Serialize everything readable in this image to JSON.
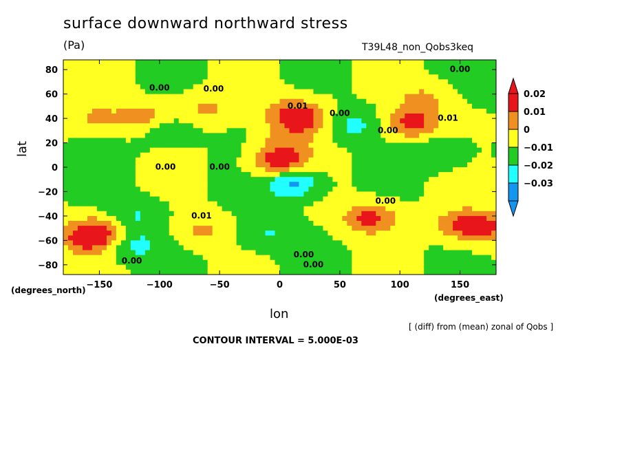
{
  "chart_data": {
    "type": "heatmap",
    "title": "surface downward northward stress",
    "units": "(Pa)",
    "run_label": "T39L48_non_Qobs3keq",
    "xlabel": "lon",
    "ylabel": "lat",
    "x_units": "(degrees_east)",
    "y_units": "(degrees_north)",
    "xlim": [
      -180,
      180
    ],
    "ylim": [
      -88,
      88
    ],
    "x_ticks": [
      -150,
      -100,
      -50,
      0,
      50,
      100,
      150
    ],
    "x_tick_labels": [
      "−150",
      "−100",
      "−50",
      "0",
      "50",
      "100",
      "150"
    ],
    "y_ticks": [
      80,
      60,
      40,
      20,
      0,
      -20,
      -40,
      -60,
      -80
    ],
    "y_tick_labels": [
      "80",
      "60",
      "40",
      "20",
      "0",
      "−20",
      "−40",
      "−60",
      "−80"
    ],
    "colorbar": {
      "labels": [
        "0.02",
        "0.01",
        "0",
        "−0.01",
        "−0.02",
        "−0.03"
      ],
      "bands": [
        {
          "range": [
            0.02,
            0.03
          ],
          "color": "#e8161a"
        },
        {
          "range": [
            0.01,
            0.02
          ],
          "color": "#f09020"
        },
        {
          "range": [
            0.0,
            0.01
          ],
          "color": "#ffff22"
        },
        {
          "range": [
            -0.01,
            0.0
          ],
          "color": "#22cc22"
        },
        {
          "range": [
            -0.02,
            -0.01
          ],
          "color": "#22ffff"
        },
        {
          "range": [
            -0.03,
            -0.02
          ],
          "color": "#1496f0"
        }
      ]
    },
    "contour_labels": [
      {
        "text": "0.00",
        "lon": -100,
        "lat": 63
      },
      {
        "text": "0.00",
        "lon": -55,
        "lat": 62
      },
      {
        "text": "0.01",
        "lon": 15,
        "lat": 48
      },
      {
        "text": "0.00",
        "lon": 50,
        "lat": 42
      },
      {
        "text": "0.00",
        "lon": 90,
        "lat": 28
      },
      {
        "text": "0.00",
        "lon": 150,
        "lat": 78
      },
      {
        "text": "0.01",
        "lon": 140,
        "lat": 38
      },
      {
        "text": "0.00",
        "lon": -95,
        "lat": -2
      },
      {
        "text": "0.00",
        "lon": -50,
        "lat": -2
      },
      {
        "text": "0.00",
        "lon": 88,
        "lat": -30
      },
      {
        "text": "0.01",
        "lon": -65,
        "lat": -42
      },
      {
        "text": "0.00",
        "lon": -123,
        "lat": -79
      },
      {
        "text": "0.00",
        "lon": 20,
        "lat": -74
      },
      {
        "text": "0.00",
        "lon": 28,
        "lat": -82
      }
    ],
    "features": [
      {
        "lon": -152,
        "lat": 40,
        "value": 0.012
      },
      {
        "lon": -112,
        "lat": 40,
        "value": 0.016
      },
      {
        "lon": -60,
        "lat": 48,
        "value": 0.012
      },
      {
        "lon": 5,
        "lat": 45,
        "value": 0.012
      },
      {
        "lon": 20,
        "lat": 40,
        "value": 0.022
      },
      {
        "lon": 110,
        "lat": 36,
        "value": 0.024
      },
      {
        "lon": 120,
        "lat": 56,
        "value": 0.012
      },
      {
        "lon": 0,
        "lat": 4,
        "value": 0.03
      },
      {
        "lon": 5,
        "lat": 22,
        "value": 0.011
      },
      {
        "lon": 10,
        "lat": -12,
        "value": -0.026
      },
      {
        "lon": -95,
        "lat": 30,
        "value": -0.012
      },
      {
        "lon": 60,
        "lat": 35,
        "value": -0.013
      },
      {
        "lon": 135,
        "lat": 12,
        "value": -0.012
      },
      {
        "lon": -160,
        "lat": -58,
        "value": 0.024
      },
      {
        "lon": -150,
        "lat": -52,
        "value": 0.014
      },
      {
        "lon": 75,
        "lat": -42,
        "value": 0.024
      },
      {
        "lon": -65,
        "lat": -52,
        "value": 0.012
      },
      {
        "lon": 150,
        "lat": -46,
        "value": 0.016
      },
      {
        "lon": 170,
        "lat": -50,
        "value": 0.022
      },
      {
        "lon": -120,
        "lat": -64,
        "value": -0.013
      },
      {
        "lon": -120,
        "lat": -40,
        "value": -0.011
      },
      {
        "lon": -10,
        "lat": -55,
        "value": -0.011
      }
    ]
  },
  "annotations": {
    "contour_interval": "CONTOUR INTERVAL = 5.000E-03",
    "note": "[ (diff) from (mean) zonal of Qobs ]"
  }
}
